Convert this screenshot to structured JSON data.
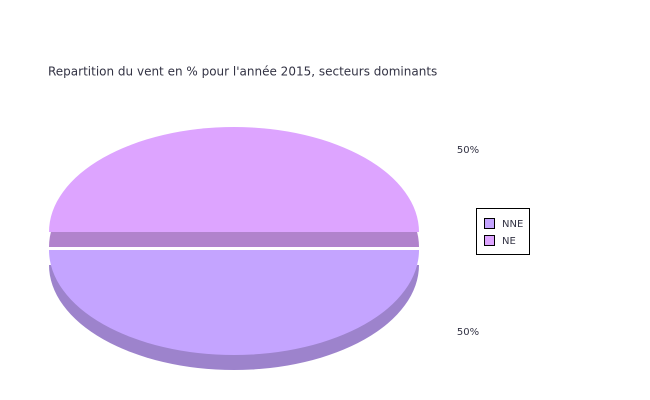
{
  "chart_data": {
    "type": "pie",
    "title": "Repartition du vent en % pour l'année 2015, secteurs dominants",
    "categories": [
      "NNE",
      "NE"
    ],
    "values": [
      50,
      50
    ],
    "value_labels": [
      "50%",
      "50%"
    ],
    "colors": [
      "#c4a4ff",
      "#dda4ff"
    ],
    "legend": "right"
  }
}
